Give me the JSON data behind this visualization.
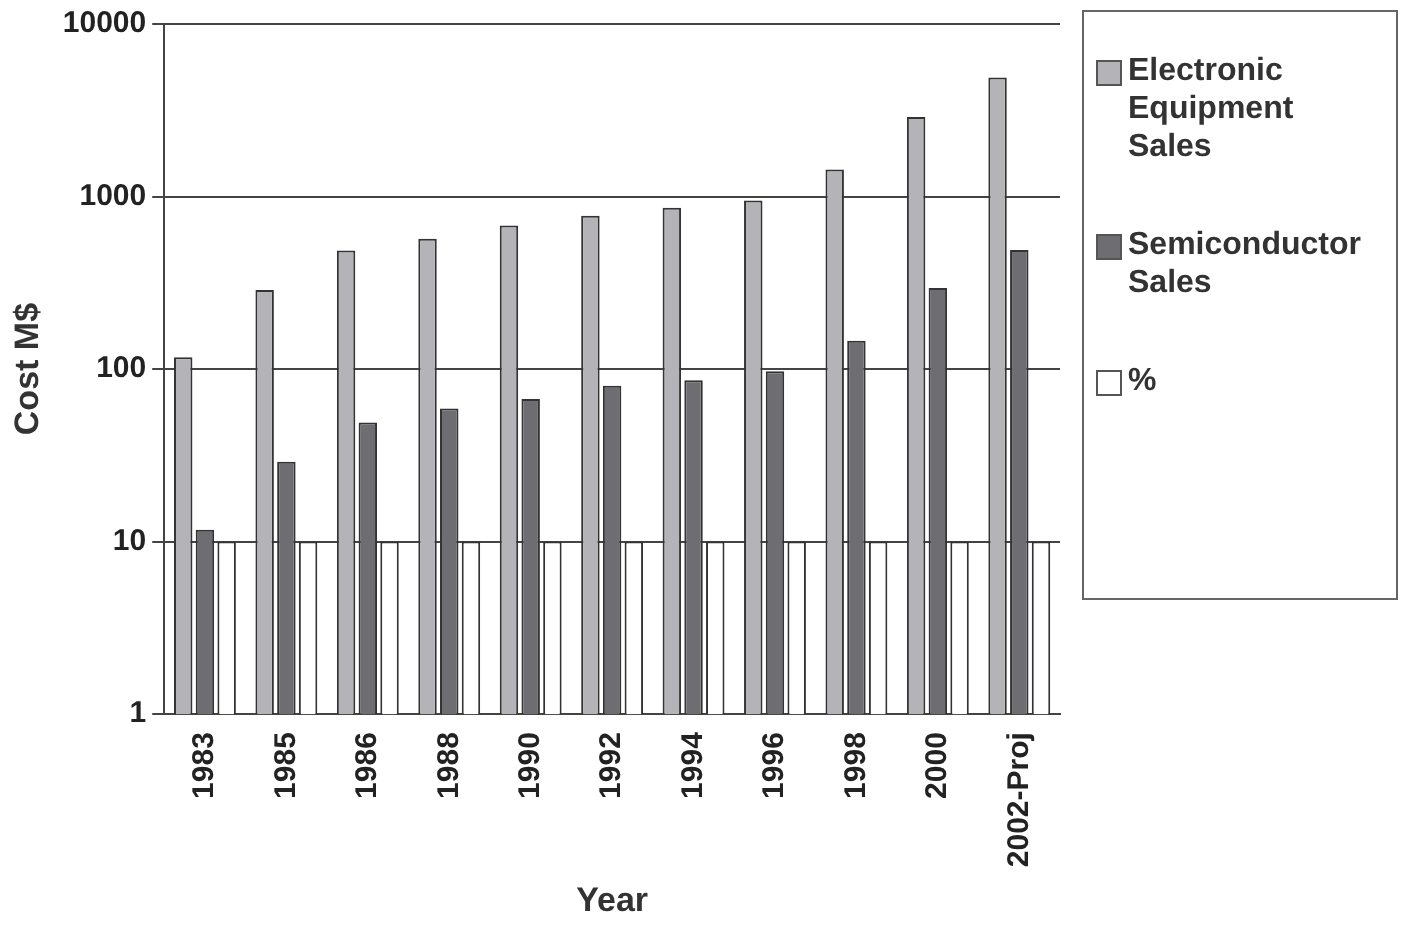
{
  "chart_data": {
    "type": "bar",
    "xlabel": "Year",
    "ylabel": "Cost M$",
    "categories": [
      "1983",
      "1985",
      "1986",
      "1988",
      "1990",
      "1992",
      "1994",
      "1996",
      "1998",
      "2000",
      "2002-Proj"
    ],
    "series": [
      {
        "name": "Electronic Equipment Sales",
        "color": "#b4b4b8",
        "values": [
          117,
          287,
          487,
          570,
          680,
          775,
          860,
          950,
          1435,
          2890,
          4900
        ]
      },
      {
        "name": "Semiconductor Sales",
        "color": "#6e6e72",
        "values": [
          11.7,
          29,
          49,
          59,
          67,
          80,
          86,
          97,
          146,
          295,
          490
        ]
      },
      {
        "name": "%",
        "color": "#ffffff",
        "values": [
          10,
          10,
          10,
          10,
          10,
          10,
          10,
          10,
          10,
          10,
          10
        ]
      }
    ],
    "log": "y",
    "ylim": [
      1,
      10000
    ],
    "yticks": [
      1,
      10,
      100,
      1000,
      10000
    ],
    "grid": "y",
    "legend": "right"
  }
}
